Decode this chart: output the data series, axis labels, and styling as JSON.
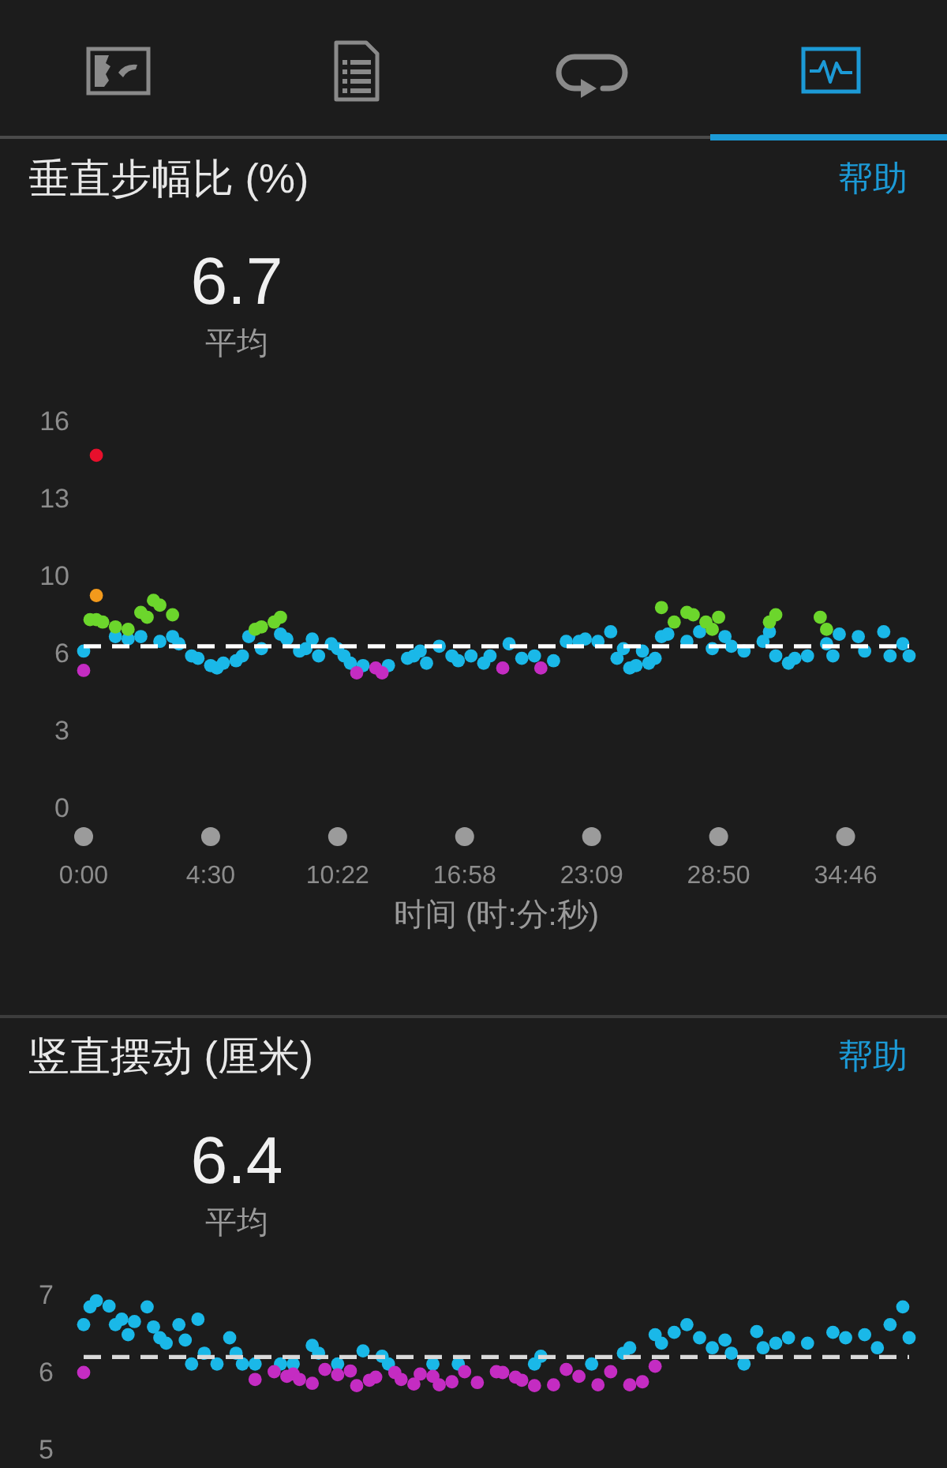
{
  "chart_data": [
    {
      "type": "scatter",
      "title": "垂直步幅比 (%)",
      "xlabel": "时间 (时:分:秒)",
      "annotations": [
        "帮助",
        "6.7",
        "平均"
      ],
      "categories": [
        "0:00",
        null,
        null,
        null,
        null,
        null,
        null,
        null,
        null,
        null,
        null,
        null,
        null,
        null,
        null,
        null,
        null,
        null,
        null,
        null,
        "4:30",
        null,
        null,
        null,
        null,
        null,
        null,
        null,
        null,
        null,
        null,
        null,
        null,
        null,
        null,
        null,
        null,
        null,
        null,
        null,
        "10:22",
        null,
        null,
        null,
        null,
        null,
        null,
        null,
        null,
        null,
        null,
        null,
        null,
        null,
        null,
        null,
        null,
        null,
        null,
        null,
        "16:58",
        null,
        null,
        null,
        null,
        null,
        null,
        null,
        null,
        null,
        null,
        null,
        null,
        null,
        null,
        null,
        null,
        null,
        null,
        null,
        "23:09",
        null,
        null,
        null,
        null,
        null,
        null,
        null,
        null,
        null,
        null,
        null,
        null,
        null,
        null,
        null,
        null,
        null,
        null,
        null,
        "28:50",
        null,
        null,
        null,
        null,
        null,
        null,
        null,
        null,
        null,
        null,
        null,
        null,
        null,
        null,
        null,
        null,
        null,
        null,
        null,
        "34:46",
        null,
        null,
        null,
        null,
        null,
        null,
        null,
        null,
        null,
        null
      ],
      "ylim": [
        0,
        16
      ],
      "yticks": [
        0,
        {
          "value": 3.2,
          "label": "3"
        },
        {
          "value": 6.4,
          "label": "6"
        },
        {
          "value": 9.6,
          "label": "10"
        },
        {
          "value": 12.8,
          "label": "13"
        },
        16
      ],
      "marker": "circle",
      "ref_lines": [
        {
          "axis": "y",
          "value": 6.7,
          "color": "#ffffff",
          "line_style": "dashed"
        }
      ],
      "series": [
        {
          "color": "#1ab8e8",
          "values": [
            6.5,
            null,
            null,
            null,
            null,
            7.1,
            null,
            7.0,
            null,
            7.1,
            null,
            null,
            6.9,
            null,
            7.1,
            6.8,
            null,
            6.3,
            6.2,
            null,
            5.9,
            5.8,
            6.0,
            null,
            6.1,
            6.3,
            7.1,
            null,
            6.6,
            null,
            null,
            7.2,
            7.0,
            null,
            6.5,
            6.6,
            7.0,
            6.3,
            null,
            6.8,
            6.6,
            6.3,
            6.0,
            null,
            5.9,
            null,
            null,
            null,
            5.9,
            null,
            null,
            6.2,
            6.3,
            6.5,
            6.0,
            null,
            6.7,
            null,
            6.3,
            6.1,
            null,
            6.3,
            null,
            6.0,
            6.3,
            null,
            null,
            6.8,
            null,
            6.2,
            null,
            6.3,
            null,
            null,
            6.1,
            null,
            6.9,
            null,
            6.9,
            7.0,
            null,
            6.9,
            null,
            7.3,
            6.2,
            6.6,
            5.8,
            5.9,
            6.5,
            6.0,
            6.2,
            7.1,
            7.2,
            null,
            null,
            6.9,
            null,
            7.3,
            null,
            6.6,
            null,
            7.1,
            6.7,
            null,
            6.5,
            null,
            null,
            6.9,
            7.3,
            6.3,
            null,
            6.0,
            6.2,
            null,
            6.3,
            null,
            null,
            6.8,
            6.3,
            7.2,
            null,
            null,
            7.1,
            6.5,
            null,
            null,
            7.3,
            6.3,
            null,
            6.8,
            6.3
          ]
        },
        {
          "color": "#6cd62c",
          "values": [
            null,
            7.8,
            7.8,
            7.7,
            null,
            7.5,
            null,
            7.4,
            null,
            8.1,
            7.9,
            8.6,
            8.4,
            null,
            8.0,
            null,
            null,
            null,
            null,
            null,
            null,
            null,
            null,
            null,
            null,
            null,
            null,
            7.4,
            7.5,
            null,
            7.7,
            7.9,
            null,
            null,
            null,
            null,
            null,
            null,
            null,
            null,
            null,
            null,
            null,
            null,
            null,
            null,
            null,
            null,
            null,
            null,
            null,
            null,
            null,
            null,
            null,
            null,
            null,
            null,
            null,
            null,
            null,
            null,
            null,
            null,
            null,
            null,
            null,
            null,
            null,
            null,
            null,
            null,
            null,
            null,
            null,
            null,
            null,
            null,
            null,
            null,
            null,
            null,
            null,
            null,
            null,
            null,
            null,
            null,
            null,
            null,
            null,
            8.3,
            null,
            7.7,
            null,
            8.1,
            8.0,
            null,
            7.7,
            7.4,
            7.9,
            null,
            null,
            null,
            null,
            null,
            null,
            null,
            7.7,
            8.0,
            null,
            null,
            null,
            null,
            null,
            null,
            7.9,
            7.4,
            null,
            null,
            null,
            null,
            null,
            null,
            null,
            null,
            null,
            null,
            null,
            null,
            null
          ]
        },
        {
          "color": "#c42cc2",
          "values": [
            5.7,
            null,
            null,
            null,
            null,
            null,
            null,
            null,
            null,
            null,
            null,
            null,
            null,
            null,
            null,
            null,
            null,
            null,
            null,
            null,
            null,
            null,
            null,
            null,
            null,
            null,
            null,
            null,
            null,
            null,
            null,
            null,
            null,
            null,
            null,
            null,
            null,
            null,
            null,
            null,
            null,
            null,
            null,
            5.6,
            null,
            null,
            5.8,
            5.6,
            null,
            null,
            null,
            null,
            null,
            null,
            null,
            null,
            null,
            null,
            null,
            null,
            null,
            null,
            null,
            null,
            null,
            null,
            5.8,
            null,
            null,
            null,
            null,
            null,
            5.8,
            null,
            null,
            null,
            null,
            null,
            null,
            null,
            null,
            null,
            null,
            null,
            null,
            null,
            null,
            null,
            null,
            null,
            null,
            null,
            null,
            null,
            null,
            null,
            null,
            null,
            null,
            null,
            null,
            null,
            null,
            null,
            null,
            null,
            null,
            null,
            null,
            null,
            null,
            null,
            null,
            null,
            null,
            null,
            null,
            null,
            null,
            null,
            null,
            null,
            null,
            null,
            null,
            null,
            null,
            null,
            null,
            null,
            null
          ]
        },
        {
          "color": "#f39a1c",
          "values": [
            null,
            null,
            8.8,
            null,
            null,
            null,
            null,
            null,
            null,
            null,
            null,
            null,
            null,
            null,
            null,
            null,
            null,
            null,
            null,
            null,
            null,
            null,
            null,
            null,
            null,
            null,
            null,
            null,
            null,
            null,
            null,
            null,
            null,
            null,
            null,
            null,
            null,
            null,
            null,
            null,
            null,
            null,
            null,
            null,
            null,
            null,
            null,
            null,
            null,
            null,
            null,
            null,
            null,
            null,
            null,
            null,
            null,
            null,
            null,
            null,
            null,
            null,
            null,
            null,
            null,
            null,
            null,
            null,
            null,
            null,
            null,
            null,
            null,
            null,
            null,
            null,
            null,
            null,
            null,
            null,
            null,
            null,
            null,
            null,
            null,
            null,
            null,
            null,
            null,
            null,
            null,
            null,
            null,
            null,
            null,
            null,
            null,
            null,
            null,
            null,
            null,
            null,
            null,
            null,
            null,
            null,
            null,
            null,
            null,
            null,
            null,
            null,
            null,
            null,
            null,
            null,
            null,
            null,
            null,
            null,
            null,
            null,
            null,
            null,
            null,
            null,
            null,
            null,
            null,
            null,
            null
          ]
        },
        {
          "color": "#e8102c",
          "values": [
            null,
            null,
            14.6,
            null,
            null,
            null,
            null,
            null,
            null,
            null,
            null,
            null,
            null,
            null,
            null,
            null,
            null,
            null,
            null,
            null,
            null,
            null,
            null,
            null,
            null,
            null,
            null,
            null,
            null,
            null,
            null,
            null,
            null,
            null,
            null,
            null,
            null,
            null,
            null,
            null,
            null,
            null,
            null,
            null,
            null,
            null,
            null,
            null,
            null,
            null,
            null,
            null,
            null,
            null,
            null,
            null,
            null,
            null,
            null,
            null,
            null,
            null,
            null,
            null,
            null,
            null,
            null,
            null,
            null,
            null,
            null,
            null,
            null,
            null,
            null,
            null,
            null,
            null,
            null,
            null,
            null,
            null,
            null,
            null,
            null,
            null,
            null,
            null,
            null,
            null,
            null,
            null,
            null,
            null,
            null,
            null,
            null,
            null,
            null,
            null,
            null,
            null,
            null,
            null,
            null,
            null,
            null,
            null,
            null,
            null,
            null,
            null,
            null,
            null,
            null,
            null,
            null,
            null,
            null,
            null,
            null,
            null,
            null,
            null,
            null,
            null,
            null,
            null,
            null,
            null,
            null
          ]
        }
      ]
    },
    {
      "type": "scatter",
      "title": "竖直摆动 (厘米)",
      "annotations": [
        "帮助",
        "6.4",
        "平均"
      ],
      "categories": [
        null,
        null,
        null,
        null,
        null,
        null,
        null,
        null,
        null,
        null,
        null,
        null,
        null,
        null,
        null,
        null,
        null,
        null,
        null,
        null,
        null,
        null,
        null,
        null,
        null,
        null,
        null,
        null,
        null,
        null,
        null,
        null,
        null,
        null,
        null,
        null,
        null,
        null,
        null,
        null,
        null,
        null,
        null,
        null,
        null,
        null,
        null,
        null,
        null,
        null,
        null,
        null,
        null,
        null,
        null,
        null,
        null,
        null,
        null,
        null,
        null,
        null,
        null,
        null,
        null,
        null,
        null,
        null,
        null,
        null,
        null,
        null,
        null,
        null,
        null,
        null,
        null,
        null,
        null,
        null,
        null,
        null,
        null,
        null,
        null,
        null,
        null,
        null,
        null,
        null,
        null,
        null,
        null,
        null,
        null,
        null,
        null,
        null,
        null,
        null,
        null,
        null,
        null,
        null,
        null,
        null,
        null,
        null,
        null,
        null,
        null,
        null,
        null,
        null,
        null,
        null,
        null,
        null,
        null,
        null,
        null,
        null,
        null,
        null,
        null,
        null,
        null,
        null,
        null,
        null,
        null
      ],
      "ylim": [
        5.2,
        7.2
      ],
      "yticks": [
        {
          "value": 5.2,
          "label": "5"
        },
        {
          "value": 6.2,
          "label": "6"
        },
        {
          "value": 7.2,
          "label": "7"
        }
      ],
      "tick_labels": "y",
      "marker": "circle",
      "ref_lines": [
        {
          "axis": "y",
          "value": 6.4,
          "color": "#d9d9d9",
          "line_style": "dashed"
        }
      ],
      "series": [
        {
          "color": "#1ab8e8",
          "values": [
            6.82,
            7.05,
            7.13,
            null,
            7.06,
            6.82,
            6.89,
            6.69,
            6.86,
            null,
            7.05,
            6.79,
            6.65,
            6.58,
            null,
            6.82,
            6.62,
            6.31,
            6.89,
            6.45,
            null,
            6.31,
            null,
            6.65,
            6.45,
            6.31,
            null,
            6.31,
            null,
            null,
            null,
            6.31,
            null,
            6.31,
            null,
            null,
            6.55,
            6.45,
            null,
            null,
            6.31,
            null,
            null,
            null,
            6.48,
            null,
            null,
            6.41,
            6.31,
            null,
            null,
            null,
            null,
            null,
            null,
            6.31,
            null,
            null,
            null,
            6.31,
            null,
            null,
            null,
            null,
            null,
            null,
            null,
            null,
            null,
            null,
            null,
            6.31,
            6.41,
            null,
            null,
            null,
            null,
            null,
            null,
            null,
            6.31,
            null,
            null,
            null,
            null,
            6.45,
            6.52,
            null,
            null,
            null,
            6.69,
            6.58,
            null,
            6.72,
            null,
            6.82,
            null,
            6.65,
            null,
            6.52,
            null,
            6.62,
            6.45,
            null,
            6.31,
            null,
            6.73,
            6.52,
            null,
            6.58,
            null,
            6.65,
            null,
            null,
            6.58,
            null,
            null,
            null,
            6.72,
            null,
            6.65,
            null,
            null,
            6.69,
            null,
            6.52,
            null,
            6.82,
            null,
            7.05,
            6.65
          ]
        },
        {
          "color": "#c42cc2",
          "values": [
            6.2,
            null,
            null,
            null,
            null,
            null,
            null,
            null,
            null,
            null,
            null,
            null,
            null,
            null,
            null,
            null,
            null,
            null,
            null,
            null,
            null,
            null,
            null,
            null,
            null,
            null,
            null,
            6.11,
            null,
            null,
            6.21,
            null,
            6.15,
            6.18,
            6.11,
            null,
            6.06,
            null,
            6.24,
            null,
            6.17,
            null,
            6.22,
            6.03,
            null,
            6.1,
            6.14,
            null,
            null,
            6.2,
            6.11,
            null,
            6.05,
            6.18,
            null,
            6.15,
            6.04,
            null,
            6.08,
            null,
            6.21,
            null,
            6.07,
            null,
            null,
            6.21,
            6.2,
            null,
            6.14,
            6.1,
            null,
            6.03,
            null,
            null,
            6.04,
            null,
            6.24,
            null,
            6.15,
            null,
            null,
            6.04,
            null,
            6.21,
            null,
            null,
            6.04,
            null,
            6.08,
            null,
            6.28,
            null,
            null,
            null,
            null,
            null,
            null,
            null,
            null,
            null,
            null,
            null,
            null,
            null,
            null,
            null,
            null,
            null,
            null,
            null,
            null,
            null,
            null,
            null,
            null,
            null,
            null,
            null,
            null,
            null,
            null,
            null,
            null,
            null,
            null,
            null,
            null,
            null,
            null,
            null,
            null
          ]
        }
      ]
    }
  ]
}
